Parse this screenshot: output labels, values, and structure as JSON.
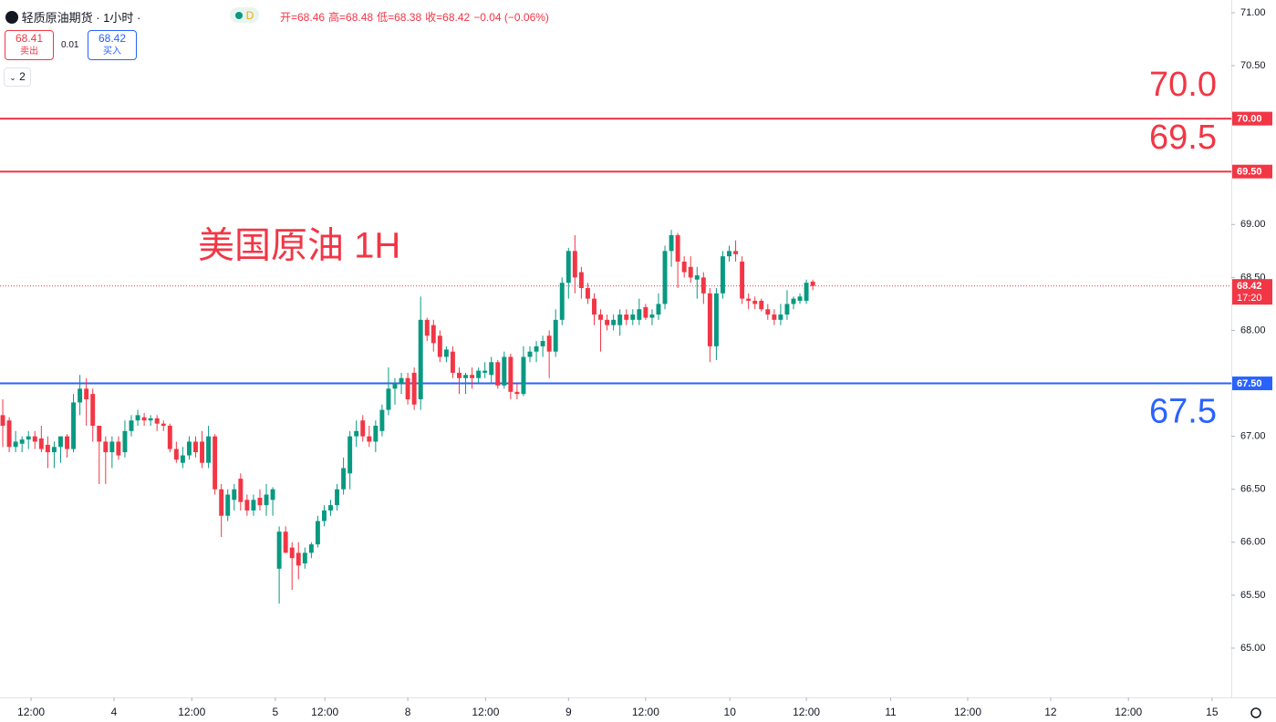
{
  "header": {
    "title": "轻质原油期货 · 1小时 ·",
    "session": "D",
    "ohlc": [
      "开=68.46",
      "高=68.48",
      "低=68.38",
      "收=68.42"
    ],
    "change": "−0.04 (−0.06%)"
  },
  "trade": {
    "sell_price": "68.41",
    "sell_label": "卖出",
    "spread": "0.01",
    "buy_price": "68.42",
    "buy_label": "买入",
    "layers": "2"
  },
  "chart_data": {
    "type": "candlestick",
    "annotation": "美国原油 1H",
    "up_color": "#089981",
    "down_color": "#f23645",
    "ylim": [
      64.535,
      71.12
    ],
    "yticks": [
      {
        "value": 65,
        "label": "65.00"
      },
      {
        "value": 65.5,
        "label": "65.50"
      },
      {
        "value": 66,
        "label": "66.00"
      },
      {
        "value": 66.5,
        "label": "66.50"
      },
      {
        "value": 67,
        "label": "67.00"
      },
      {
        "value": 67.5,
        "label": "67.50"
      },
      {
        "value": 68,
        "label": "68.00"
      },
      {
        "value": 68.5,
        "label": "68.50"
      },
      {
        "value": 69,
        "label": "69.00"
      },
      {
        "value": 69.5,
        "label": "69.50"
      },
      {
        "value": 70,
        "label": "70.00"
      },
      {
        "value": 70.5,
        "label": "70.50"
      },
      {
        "value": 71,
        "label": "71.00"
      }
    ],
    "xlim": [
      -0.43,
      191.1
    ],
    "xticks": [
      {
        "value": 4.4,
        "label": "12:00"
      },
      {
        "value": 17.3,
        "label": "4"
      },
      {
        "value": 29.4,
        "label": "12:00"
      },
      {
        "value": 42.4,
        "label": "5"
      },
      {
        "value": 50.1,
        "label": "12:00"
      },
      {
        "value": 63,
        "label": "8"
      },
      {
        "value": 75.1,
        "label": "12:00"
      },
      {
        "value": 88,
        "label": "9"
      },
      {
        "value": 100,
        "label": "12:00"
      },
      {
        "value": 113.1,
        "label": "10"
      },
      {
        "value": 125,
        "label": "12:00"
      },
      {
        "value": 138.1,
        "label": "11"
      },
      {
        "value": 150.1,
        "label": "12:00"
      },
      {
        "value": 163,
        "label": "12"
      },
      {
        "value": 175.1,
        "label": "12:00"
      },
      {
        "value": 188.1,
        "label": "15"
      }
    ],
    "levels": [
      {
        "value": 70,
        "label": "70.00",
        "text": "70.0",
        "color": "#f23645"
      },
      {
        "value": 69.5,
        "label": "69.50",
        "text": "69.5",
        "color": "#f23645"
      },
      {
        "value": 67.5,
        "label": "67.50",
        "text": "67.5",
        "color": "#2962ff"
      }
    ],
    "last_price": {
      "value": 68.42,
      "label": "68.42",
      "time": "17:20",
      "color": "#f23645"
    },
    "ohlc": [
      [
        67.2,
        67.35,
        66.9,
        67.1
      ],
      [
        67.15,
        67.18,
        66.85,
        66.9
      ],
      [
        66.9,
        67.05,
        66.85,
        66.95
      ],
      [
        66.93,
        67,
        66.85,
        66.97
      ],
      [
        66.97,
        67.05,
        66.88,
        67
      ],
      [
        67,
        67.05,
        66.88,
        66.95
      ],
      [
        66.98,
        67.1,
        66.85,
        66.88
      ],
      [
        66.92,
        67,
        66.7,
        66.85
      ],
      [
        66.85,
        66.95,
        66.7,
        66.9
      ],
      [
        66.9,
        67,
        66.75,
        67
      ],
      [
        67,
        67.02,
        66.8,
        66.88
      ],
      [
        66.88,
        67.4,
        66.85,
        67.32
      ],
      [
        67.32,
        67.58,
        67.2,
        67.45
      ],
      [
        67.45,
        67.55,
        67.1,
        67.35
      ],
      [
        67.4,
        67.45,
        66.95,
        67.1
      ],
      [
        67.1,
        67.1,
        66.55,
        66.95
      ],
      [
        66.95,
        67,
        66.55,
        66.85
      ],
      [
        66.85,
        67,
        66.7,
        66.95
      ],
      [
        66.95,
        67,
        66.78,
        66.82
      ],
      [
        66.85,
        67.15,
        66.8,
        67.05
      ],
      [
        67.05,
        67.2,
        67,
        67.15
      ],
      [
        67.15,
        67.25,
        67.1,
        67.2
      ],
      [
        67.18,
        67.22,
        67.1,
        67.15
      ],
      [
        67.15,
        67.2,
        67.1,
        67.17
      ],
      [
        67.17,
        67.2,
        67.05,
        67.12
      ],
      [
        67.12,
        67.15,
        67.05,
        67.1
      ],
      [
        67.1,
        67.12,
        66.85,
        66.88
      ],
      [
        66.88,
        66.95,
        66.75,
        66.78
      ],
      [
        66.75,
        66.9,
        66.7,
        66.82
      ],
      [
        66.82,
        67,
        66.78,
        66.95
      ],
      [
        66.95,
        67,
        66.8,
        66.85
      ],
      [
        66.95,
        67.05,
        66.7,
        66.75
      ],
      [
        66.75,
        67.1,
        66.7,
        67
      ],
      [
        67,
        67.02,
        66.45,
        66.5
      ],
      [
        66.5,
        66.55,
        66.05,
        66.25
      ],
      [
        66.25,
        66.5,
        66.2,
        66.45
      ],
      [
        66.4,
        66.55,
        66.3,
        66.5
      ],
      [
        66.6,
        66.65,
        66.3,
        66.38
      ],
      [
        66.4,
        66.45,
        66.25,
        66.3
      ],
      [
        66.3,
        66.45,
        66.25,
        66.4
      ],
      [
        66.42,
        66.5,
        66.3,
        66.35
      ],
      [
        66.35,
        66.55,
        66.25,
        66.45
      ],
      [
        66.4,
        66.52,
        66.25,
        66.5
      ],
      [
        65.75,
        66.15,
        65.42,
        66.1
      ],
      [
        66.1,
        66.15,
        65.9,
        65.9
      ],
      [
        65.95,
        66,
        65.55,
        65.85
      ],
      [
        65.9,
        66,
        65.65,
        65.78
      ],
      [
        65.8,
        65.95,
        65.75,
        65.9
      ],
      [
        65.9,
        66,
        65.85,
        65.98
      ],
      [
        65.98,
        66.25,
        65.95,
        66.2
      ],
      [
        66.2,
        66.35,
        66.15,
        66.3
      ],
      [
        66.3,
        66.4,
        66.25,
        66.35
      ],
      [
        66.35,
        66.55,
        66.3,
        66.5
      ],
      [
        66.5,
        66.8,
        66.45,
        66.7
      ],
      [
        66.65,
        67.05,
        66.5,
        67
      ],
      [
        67,
        67.15,
        66.9,
        67.05
      ],
      [
        67.15,
        67.2,
        66.95,
        67
      ],
      [
        67,
        67.1,
        66.9,
        66.95
      ],
      [
        66.95,
        67.15,
        66.85,
        67.1
      ],
      [
        67.05,
        67.3,
        67,
        67.25
      ],
      [
        67.25,
        67.65,
        67.2,
        67.45
      ],
      [
        67.45,
        67.55,
        67.3,
        67.5
      ],
      [
        67.5,
        67.6,
        67.4,
        67.55
      ],
      [
        67.55,
        67.6,
        67.3,
        67.35
      ],
      [
        67.6,
        67.65,
        67.25,
        67.3
      ],
      [
        67.35,
        68.32,
        67.25,
        68.1
      ],
      [
        68.1,
        68.12,
        67.9,
        67.95
      ],
      [
        68.05,
        68.1,
        67.8,
        67.88
      ],
      [
        67.95,
        68,
        67.7,
        67.75
      ],
      [
        67.75,
        67.85,
        67.7,
        67.82
      ],
      [
        67.8,
        67.85,
        67.55,
        67.6
      ],
      [
        67.6,
        67.65,
        67.4,
        67.55
      ],
      [
        67.55,
        67.6,
        67.4,
        67.58
      ],
      [
        67.58,
        67.65,
        67.45,
        67.55
      ],
      [
        67.55,
        67.65,
        67.5,
        67.62
      ],
      [
        67.6,
        67.7,
        67.55,
        67.62
      ],
      [
        67.58,
        67.75,
        67.5,
        67.7
      ],
      [
        67.7,
        67.72,
        67.45,
        67.48
      ],
      [
        67.48,
        67.8,
        67.45,
        67.75
      ],
      [
        67.75,
        67.78,
        67.35,
        67.42
      ],
      [
        67.42,
        67.5,
        67.35,
        67.4
      ],
      [
        67.4,
        67.85,
        67.38,
        67.75
      ],
      [
        67.75,
        67.85,
        67.7,
        67.8
      ],
      [
        67.8,
        67.9,
        67.7,
        67.85
      ],
      [
        67.85,
        67.95,
        67.75,
        67.9
      ],
      [
        67.95,
        68,
        67.55,
        67.8
      ],
      [
        67.8,
        68.2,
        67.75,
        68.1
      ],
      [
        68.1,
        68.5,
        68.05,
        68.45
      ],
      [
        68.45,
        68.78,
        68.3,
        68.75
      ],
      [
        68.75,
        68.9,
        68.35,
        68.5
      ],
      [
        68.55,
        68.6,
        68.3,
        68.4
      ],
      [
        68.4,
        68.45,
        68.25,
        68.3
      ],
      [
        68.3,
        68.35,
        68.05,
        68.15
      ],
      [
        68.15,
        68.2,
        67.8,
        68.1
      ],
      [
        68.1,
        68.15,
        68,
        68.05
      ],
      [
        68.05,
        68.15,
        68,
        68.1
      ],
      [
        68.05,
        68.2,
        67.95,
        68.15
      ],
      [
        68.15,
        68.2,
        68.05,
        68.1
      ],
      [
        68.1,
        68.2,
        68.05,
        68.15
      ],
      [
        68.1,
        68.3,
        68.05,
        68.2
      ],
      [
        68.22,
        68.25,
        68.1,
        68.12
      ],
      [
        68.12,
        68.2,
        68.05,
        68.15
      ],
      [
        68.15,
        68.35,
        68.1,
        68.25
      ],
      [
        68.25,
        68.8,
        68.2,
        68.75
      ],
      [
        68.75,
        68.95,
        68.6,
        68.9
      ],
      [
        68.9,
        68.92,
        68.4,
        68.65
      ],
      [
        68.65,
        68.7,
        68.5,
        68.55
      ],
      [
        68.6,
        68.7,
        68.45,
        68.5
      ],
      [
        68.48,
        68.6,
        68.3,
        68.52
      ],
      [
        68.5,
        68.55,
        68.25,
        68.35
      ],
      [
        68.35,
        68.4,
        67.7,
        67.85
      ],
      [
        67.85,
        68.4,
        67.72,
        68.35
      ],
      [
        68.35,
        68.75,
        68.3,
        68.7
      ],
      [
        68.7,
        68.8,
        68.65,
        68.75
      ],
      [
        68.75,
        68.85,
        68.65,
        68.72
      ],
      [
        68.65,
        68.7,
        68.25,
        68.3
      ],
      [
        68.3,
        68.35,
        68.2,
        68.28
      ],
      [
        68.28,
        68.32,
        68.2,
        68.25
      ],
      [
        68.28,
        68.3,
        68.18,
        68.2
      ],
      [
        68.2,
        68.25,
        68.1,
        68.15
      ],
      [
        68.15,
        68.2,
        68.05,
        68.1
      ],
      [
        68.1,
        68.25,
        68.05,
        68.15
      ],
      [
        68.15,
        68.38,
        68.1,
        68.25
      ],
      [
        68.25,
        68.32,
        68.2,
        68.3
      ],
      [
        68.28,
        68.35,
        68.25,
        68.32
      ],
      [
        68.28,
        68.48,
        68.25,
        68.45
      ],
      [
        68.46,
        68.48,
        68.38,
        68.42
      ]
    ]
  }
}
